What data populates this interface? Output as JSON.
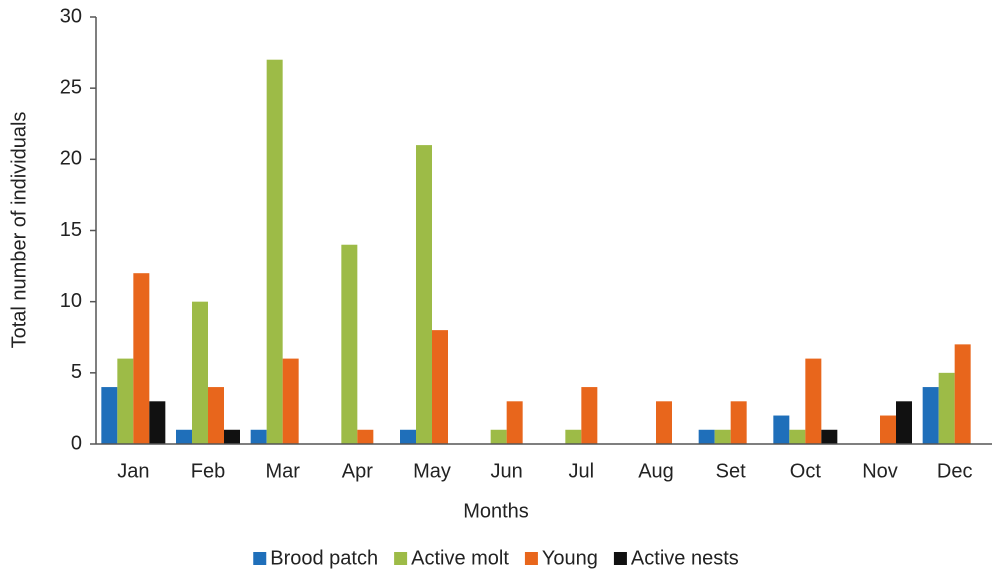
{
  "chart_data": {
    "type": "bar",
    "x_label": "Months",
    "y_label": "Total number of individuals",
    "categories": [
      "Jan",
      "Feb",
      "Mar",
      "Apr",
      "May",
      "Jun",
      "Jul",
      "Aug",
      "Set",
      "Oct",
      "Nov",
      "Dec"
    ],
    "series": [
      {
        "name": "Brood patch",
        "color": "#1f6fba",
        "values": [
          4,
          1,
          1,
          0,
          1,
          0,
          0,
          0,
          1,
          2,
          0,
          4
        ]
      },
      {
        "name": "Active molt",
        "color": "#9dbb47",
        "values": [
          6,
          10,
          27,
          14,
          21,
          1,
          1,
          0,
          1,
          1,
          0,
          5
        ]
      },
      {
        "name": "Young",
        "color": "#e8661c",
        "values": [
          12,
          4,
          6,
          1,
          8,
          3,
          4,
          3,
          3,
          6,
          2,
          7
        ]
      },
      {
        "name": "Active nests",
        "color": "#111111",
        "values": [
          3,
          1,
          0,
          0,
          0,
          0,
          0,
          0,
          0,
          1,
          3,
          0
        ]
      }
    ],
    "ylim": [
      0,
      30
    ],
    "yticks": [
      0,
      5,
      10,
      15,
      20,
      25,
      30
    ],
    "grid": false,
    "legend": "bottom"
  }
}
